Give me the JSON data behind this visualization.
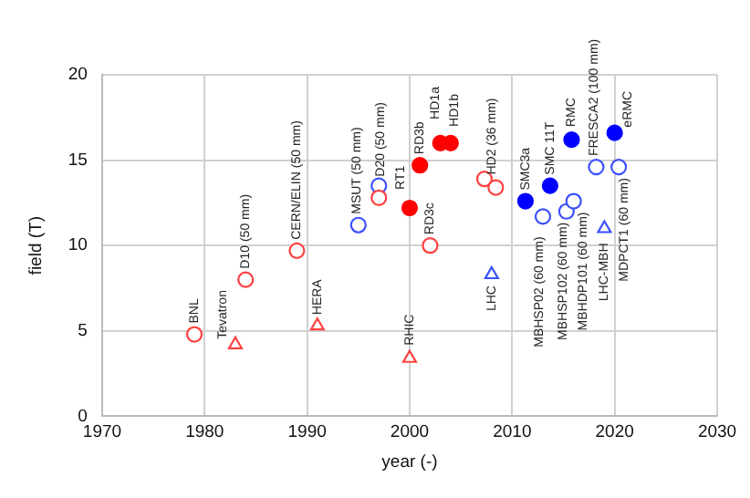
{
  "chart_data": {
    "type": "scatter",
    "xlabel": "year (-)",
    "ylabel": "field (T)",
    "xlim": [
      1970,
      2030
    ],
    "xticks": [
      1970,
      1980,
      1990,
      2000,
      2010,
      2020,
      2030
    ],
    "ylim": [
      0,
      20
    ],
    "yticks": [
      0,
      5,
      10,
      15,
      20
    ],
    "grid": true,
    "series": [
      {
        "color": "#ff4040",
        "marker": "circle",
        "x": [
          1979,
          1984,
          1989,
          1997,
          2002,
          2007.3,
          2008.4
        ],
        "values": [
          4.8,
          8.0,
          9.7,
          12.8,
          10,
          13.9,
          13.4
        ]
      },
      {
        "color": "#ff0000",
        "marker": "circle",
        "x": [
          2000,
          2001,
          2003,
          2004
        ],
        "values": [
          12.2,
          14.7,
          16,
          16
        ]
      },
      {
        "color": "#ff4040",
        "marker": "triangle",
        "x": [
          1983,
          1991,
          2000
        ],
        "values": [
          4.2,
          5.3,
          3.4
        ]
      },
      {
        "color": "#3a50ff",
        "marker": "circle",
        "x": [
          1995,
          1997,
          2013,
          2015.3,
          2016,
          2018.2,
          2020.4
        ],
        "values": [
          11.2,
          13.5,
          11.7,
          12,
          12.6,
          14.6,
          14.6
        ]
      },
      {
        "color": "#0000ff",
        "marker": "circle",
        "x": [
          2011.3,
          2013.7,
          2015.8,
          2020
        ],
        "values": [
          12.6,
          13.5,
          16.2,
          16.6
        ]
      },
      {
        "color": "#3a50ff",
        "marker": "triangle",
        "x": [
          2008,
          2019
        ],
        "values": [
          8.3,
          11
        ]
      }
    ],
    "annotations": [
      {
        "text": "BNL",
        "x": 1979,
        "y": 4.8
      },
      {
        "text": "Tevatron",
        "x": 1983,
        "y": 4.2
      },
      {
        "text": "D10 (50 mm)",
        "x": 1984,
        "y": 8.0
      },
      {
        "text": "CERN/ELIN (50 mm)",
        "x": 1989,
        "y": 9.7
      },
      {
        "text": "HERA",
        "x": 1991,
        "y": 5.3
      },
      {
        "text": "MSUT (50 mm)",
        "x": 1995,
        "y": 11.2
      },
      {
        "text": "D20 (50 mm)",
        "x": 1997,
        "y": 13.5
      },
      {
        "text": "RT1",
        "x": 2000,
        "y": 12.2
      },
      {
        "text": "RD3b",
        "x": 2001,
        "y": 14.7
      },
      {
        "text": "HD1a",
        "x": 2003,
        "y": 16
      },
      {
        "text": "HD1b",
        "x": 2004,
        "y": 16
      },
      {
        "text": "RD3c",
        "x": 2002,
        "y": 10
      },
      {
        "text": "HD2 (36 mm)",
        "x": 2008.4,
        "y": 13.4
      },
      {
        "text": "SMC3a",
        "x": 2011.3,
        "y": 12.6
      },
      {
        "text": "SMC 11T",
        "x": 2013.7,
        "y": 13.5
      },
      {
        "text": "RMC",
        "x": 2015.8,
        "y": 16.2
      },
      {
        "text": "FRESCA2 (100 mm)",
        "x": 2018.2,
        "y": 14.6
      },
      {
        "text": "eRMC",
        "x": 2020,
        "y": 16.6
      },
      {
        "text": "RHIC",
        "x": 2000,
        "y": 3.4
      },
      {
        "text": "LHC",
        "x": 2008,
        "y": 8.3
      },
      {
        "text": "MBHSP02 (60 mm)",
        "x": 2013,
        "y": 11.7
      },
      {
        "text": "MBHSP102 (60 mm)",
        "x": 2015.3,
        "y": 12
      },
      {
        "text": "MBHDP101 (60 mm)",
        "x": 2016,
        "y": 12.6
      },
      {
        "text": "LHC-MBH",
        "x": 2019,
        "y": 11
      },
      {
        "text": "MDPCT1 (60 mm)",
        "x": 2020.4,
        "y": 14.6
      }
    ]
  }
}
